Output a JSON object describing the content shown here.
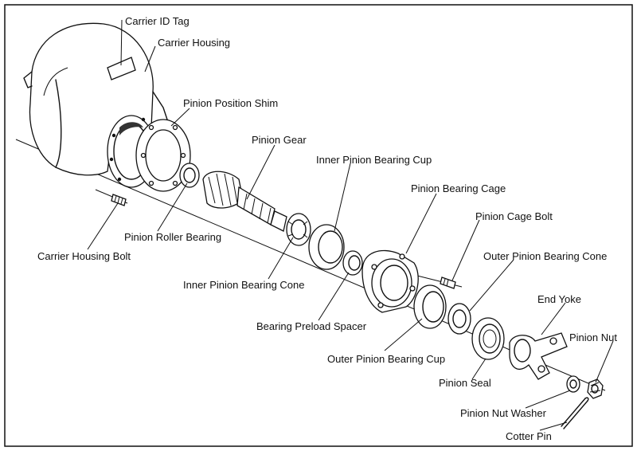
{
  "labels": {
    "carrier_id_tag": "Carrier ID Tag",
    "carrier_housing": "Carrier Housing",
    "pinion_position_shim": "Pinion Position Shim",
    "pinion_gear": "Pinion Gear",
    "inner_pinion_bearing_cup": "Inner Pinion Bearing Cup",
    "pinion_bearing_cage": "Pinion Bearing Cage",
    "pinion_cage_bolt": "Pinion Cage Bolt",
    "outer_pinion_bearing_cone": "Outer Pinion Bearing Cone",
    "end_yoke": "End Yoke",
    "pinion_nut": "Pinion Nut",
    "pinion_roller_bearing": "Pinion Roller Bearing",
    "carrier_housing_bolt": "Carrier Housing Bolt",
    "inner_pinion_bearing_cone": "Inner Pinion Bearing Cone",
    "bearing_preload_spacer": "Bearing Preload Spacer",
    "outer_pinion_bearing_cup": "Outer Pinion Bearing Cup",
    "pinion_seal": "Pinion Seal",
    "pinion_nut_washer": "Pinion Nut Washer",
    "cotter_pin": "Cotter Pin"
  }
}
